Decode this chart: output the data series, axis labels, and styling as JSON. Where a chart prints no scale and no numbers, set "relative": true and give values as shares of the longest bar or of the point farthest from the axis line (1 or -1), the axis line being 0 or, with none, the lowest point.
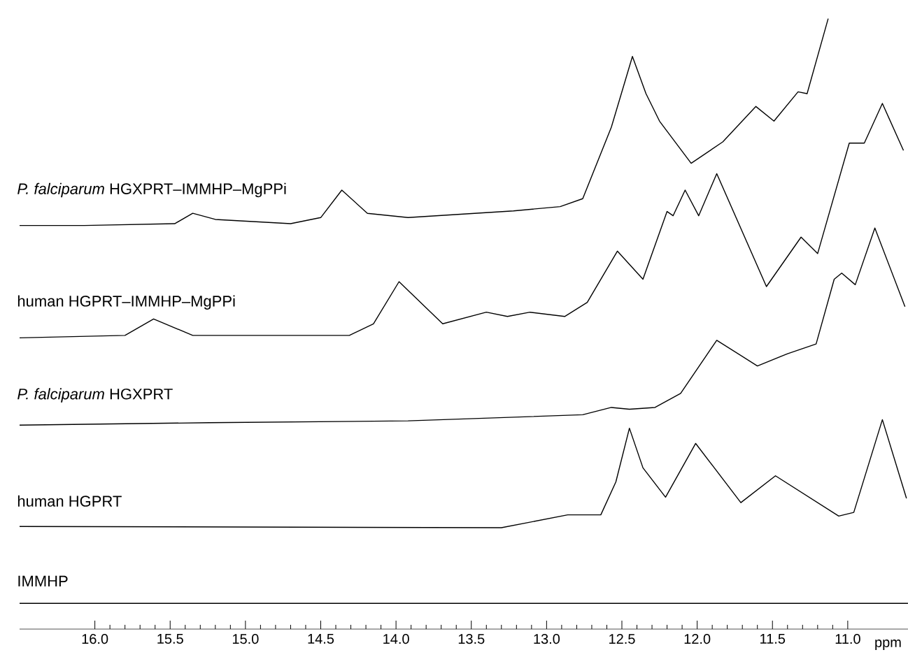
{
  "chart_data": {
    "type": "line",
    "relative": true,
    "xlim": [
      16.5,
      10.6
    ],
    "xlabel": "ppm",
    "xticks": [
      {
        "value": 16.0,
        "label": "16.0"
      },
      {
        "value": 15.5,
        "label": "15.5"
      },
      {
        "value": 15.0,
        "label": "15.0"
      },
      {
        "value": 14.5,
        "label": "14.5"
      },
      {
        "value": 14.0,
        "label": "14.0"
      },
      {
        "value": 13.5,
        "label": "13.5"
      },
      {
        "value": 13.0,
        "label": "13.0"
      },
      {
        "value": 12.5,
        "label": "12.5"
      },
      {
        "value": 12.0,
        "label": "12.0"
      },
      {
        "value": 11.5,
        "label": "11.5"
      },
      {
        "value": 11.0,
        "label": "11.0"
      }
    ],
    "series": [
      {
        "name": "*P. falciparum*    HGXPRT–IMMHP–MgPPi",
        "color": "#000000",
        "x": [
          16.5,
          16.07,
          15.47,
          15.35,
          15.2,
          14.7,
          14.5,
          14.36,
          14.19,
          13.92,
          13.22,
          12.91,
          12.76,
          12.57,
          12.43,
          12.34,
          12.25,
          12.04,
          11.83,
          11.61,
          11.49,
          11.33,
          11.27,
          11.13
        ],
        "values": [
          0.661,
          0.661,
          0.664,
          0.681,
          0.671,
          0.664,
          0.674,
          0.719,
          0.681,
          0.674,
          0.685,
          0.692,
          0.705,
          0.822,
          0.938,
          0.877,
          0.832,
          0.763,
          0.798,
          0.856,
          0.832,
          0.88,
          0.877,
          1.0
        ]
      },
      {
        "name": "human HGPRT–IMMHP–MgPPi",
        "color": "#000000",
        "x": [
          16.5,
          15.8,
          15.61,
          15.35,
          14.31,
          14.15,
          13.98,
          13.69,
          13.4,
          13.26,
          13.11,
          12.88,
          12.73,
          12.53,
          12.36,
          12.2,
          12.16,
          12.08,
          11.99,
          11.87,
          11.54,
          11.31,
          11.2,
          10.99,
          10.89,
          10.77,
          10.63
        ],
        "values": [
          0.477,
          0.481,
          0.508,
          0.481,
          0.481,
          0.5,
          0.569,
          0.5,
          0.519,
          0.512,
          0.519,
          0.512,
          0.535,
          0.619,
          0.573,
          0.684,
          0.677,
          0.719,
          0.677,
          0.746,
          0.561,
          0.642,
          0.615,
          0.796,
          0.796,
          0.861,
          0.784
        ]
      },
      {
        "name": "*P. falciparum*    HGXPRT",
        "color": "#000000",
        "x": [
          16.5,
          15.24,
          13.92,
          12.76,
          12.57,
          12.45,
          12.28,
          12.11,
          11.87,
          11.6,
          11.4,
          11.21,
          11.09,
          11.04,
          10.95,
          10.82,
          10.62
        ],
        "values": [
          0.334,
          0.338,
          0.341,
          0.351,
          0.363,
          0.36,
          0.363,
          0.386,
          0.473,
          0.431,
          0.451,
          0.467,
          0.573,
          0.583,
          0.564,
          0.657,
          0.528
        ]
      },
      {
        "name": "human HGPRT",
        "color": "#000000",
        "x": [
          16.5,
          13.3,
          12.86,
          12.64,
          12.54,
          12.45,
          12.36,
          12.21,
          12.01,
          11.71,
          11.48,
          11.06,
          10.96,
          10.77,
          10.61
        ],
        "values": [
          0.168,
          0.166,
          0.187,
          0.187,
          0.241,
          0.329,
          0.264,
          0.216,
          0.304,
          0.207,
          0.251,
          0.185,
          0.191,
          0.343,
          0.214
        ]
      },
      {
        "name": "IMMHP",
        "color": "#000000",
        "x": [
          16.5,
          13.5,
          10.6
        ],
        "values": [
          0.042,
          0.042,
          0.042
        ]
      }
    ]
  }
}
